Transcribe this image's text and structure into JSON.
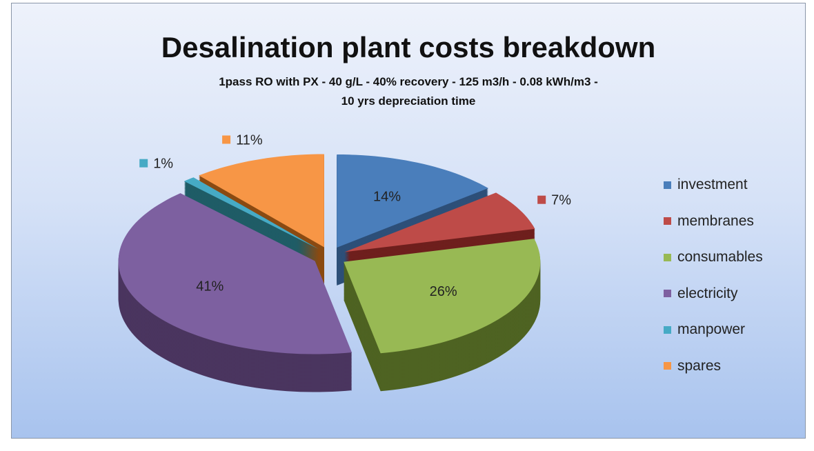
{
  "chart_data": {
    "type": "pie",
    "title": "Desalination plant costs breakdown",
    "subtitle_lines": [
      "1pass RO with PX - 40 g/L - 40% recovery - 125 m3/h - 0.08 kWh/m3 -",
      "10 yrs depreciation  time"
    ],
    "categories": [
      "investment",
      "membranes",
      "consumables",
      "electricity",
      "manpower",
      "spares"
    ],
    "values": [
      14,
      7,
      26,
      41,
      1,
      11
    ],
    "labels": [
      "14%",
      "7%",
      "26%",
      "41%",
      "1%",
      "11%"
    ],
    "colors": [
      "#4a7ebb",
      "#be4b48",
      "#98b954",
      "#7d60a0",
      "#46aac5",
      "#f79646"
    ],
    "dark_colors": [
      "#2d4f78",
      "#6e1f1d",
      "#4e6322",
      "#4a355f",
      "#1f5c66",
      "#8a4a12"
    ],
    "label_placement": [
      "inside",
      "outside",
      "inside",
      "inside",
      "outside",
      "outside"
    ],
    "style": "3d-exploded",
    "legend_position": "right"
  }
}
